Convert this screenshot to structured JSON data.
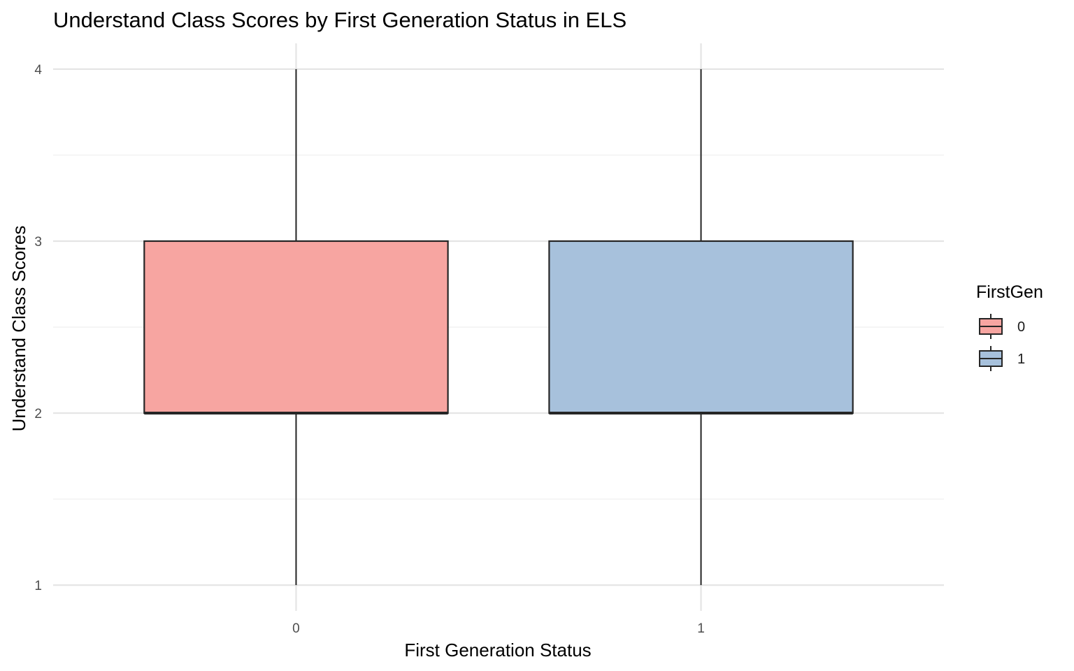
{
  "chart_data": {
    "type": "boxplot",
    "title": "Understand Class Scores by First Generation Status in ELS",
    "xlabel": "First Generation Status",
    "ylabel": "Understand Class Scores",
    "categories": [
      "0",
      "1"
    ],
    "ylim": [
      0.85,
      4.15
    ],
    "yticks": [
      1,
      2,
      3,
      4
    ],
    "grid": true,
    "boxes": [
      {
        "category": "0",
        "min": 1,
        "q1": 2,
        "median": 2,
        "q3": 3,
        "max": 4,
        "fill": "#f7a5a1"
      },
      {
        "category": "1",
        "min": 1,
        "q1": 2,
        "median": 2,
        "q3": 3,
        "max": 4,
        "fill": "#a7c1dc"
      }
    ],
    "legend": {
      "title": "FirstGen",
      "placement": "right",
      "entries": [
        {
          "label": "0",
          "fill": "#f7a5a1"
        },
        {
          "label": "1",
          "fill": "#a7c1dc"
        }
      ]
    },
    "colors": {
      "stroke": "#262626",
      "grid_major": "#e5e5e5",
      "grid_minor": "#efefef"
    }
  }
}
